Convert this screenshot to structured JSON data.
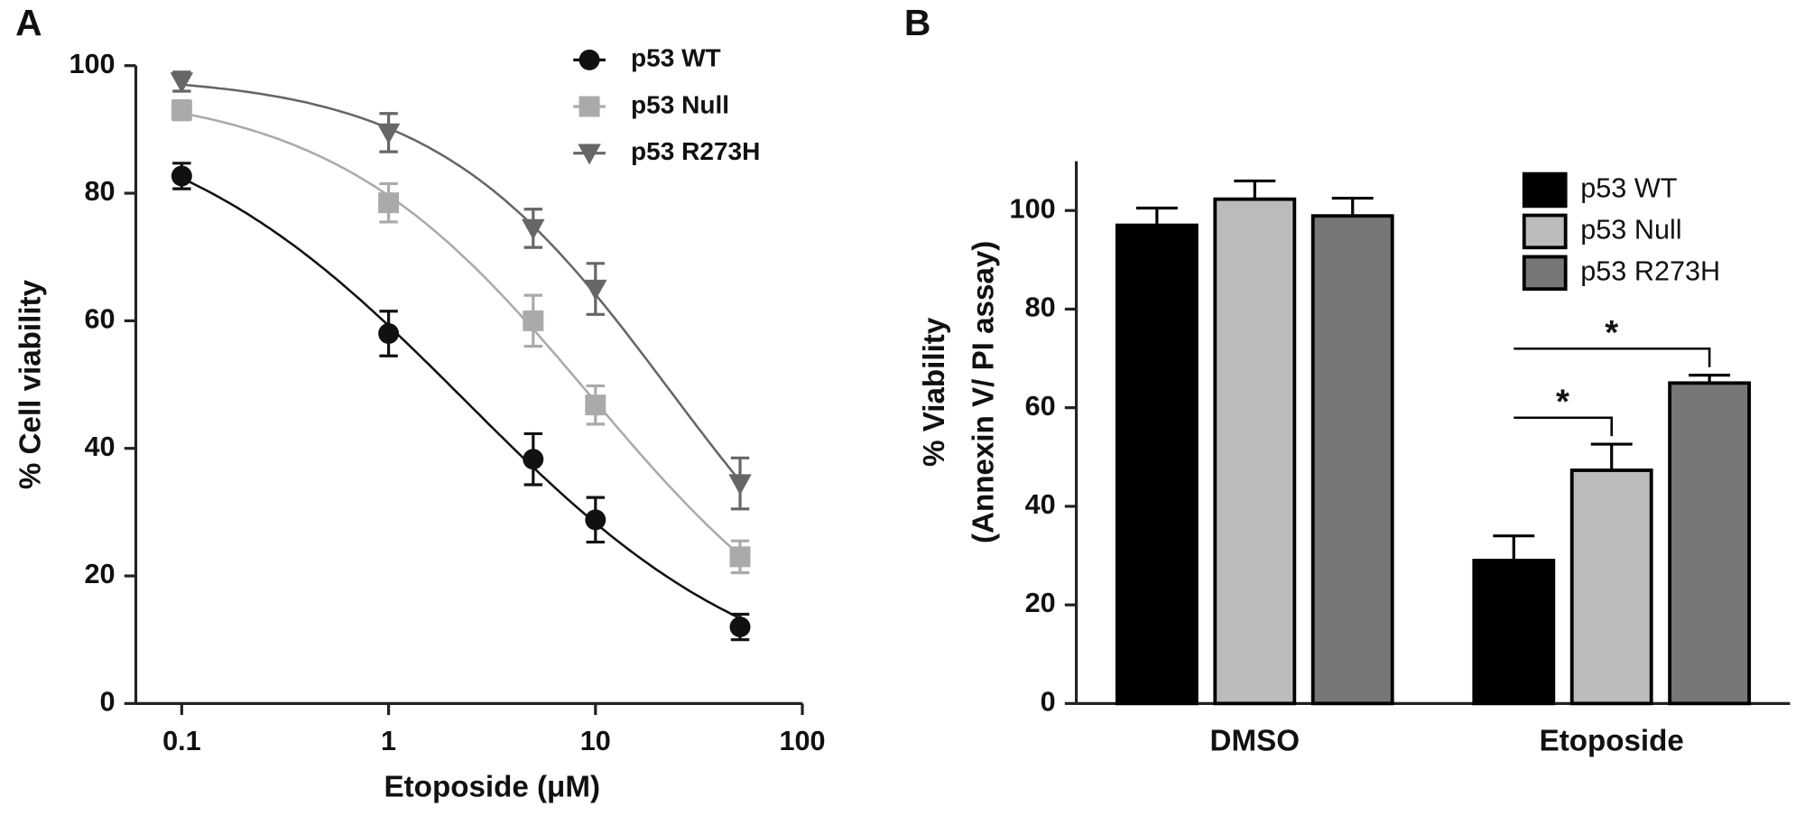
{
  "chart_data": [
    {
      "type": "scatter",
      "panel": "A",
      "xlabel": "Etoposide (μM)",
      "ylabel": "% Cell viability",
      "xscale": "log",
      "xlim": [
        0.06,
        100
      ],
      "xticks": [
        0.1,
        1,
        10,
        100
      ],
      "ylim": [
        0,
        100
      ],
      "yticks": [
        0,
        20,
        40,
        60,
        80,
        100
      ],
      "curve_fit": "4PL",
      "legend": "top-center",
      "x": [
        0.1,
        1,
        5,
        10,
        50
      ],
      "series": [
        {
          "name": "p53 WT",
          "color": "#111111",
          "marker": "circle",
          "values": [
            82.7,
            58,
            38.3,
            28.8,
            12
          ],
          "errors": [
            2,
            3.5,
            4,
            3.5,
            2
          ]
        },
        {
          "name": "p53 Null",
          "color": "#aaaaaa",
          "marker": "square",
          "values": [
            93,
            78.5,
            60,
            46.8,
            23
          ],
          "errors": [
            1.5,
            3,
            4,
            3,
            2.5
          ]
        },
        {
          "name": "p53 R273H",
          "color": "#666666",
          "marker": "triangle-down",
          "values": [
            97.5,
            89.5,
            74.5,
            65,
            34.5
          ],
          "errors": [
            1.5,
            3,
            3,
            4,
            4
          ]
        }
      ]
    },
    {
      "type": "bar",
      "panel": "B",
      "ylabel": [
        "% Viability",
        "(Annexin V/ PI assay)"
      ],
      "ylim": [
        0,
        110
      ],
      "yticks": [
        0,
        20,
        40,
        60,
        80,
        100
      ],
      "legend": "top-right",
      "categories": [
        "DMSO",
        "Etoposide"
      ],
      "series": [
        {
          "name": "p53 WT",
          "color": "#000000",
          "values": [
            97,
            29
          ],
          "errors": [
            3.5,
            5
          ]
        },
        {
          "name": "p53 Null",
          "color": "#bbbbbb",
          "values": [
            102.3,
            47.3
          ],
          "errors": [
            3.7,
            5.3
          ]
        },
        {
          "name": "p53 R273H",
          "color": "#777777",
          "values": [
            98.9,
            65
          ],
          "errors": [
            3.6,
            1.6
          ]
        }
      ],
      "comparisons": [
        {
          "label": "*",
          "category": "Etoposide",
          "series": [
            "p53 WT",
            "p53 Null"
          ]
        },
        {
          "label": "*",
          "category": "Etoposide",
          "series": [
            "p53 WT",
            "p53 R273H"
          ]
        }
      ]
    }
  ]
}
